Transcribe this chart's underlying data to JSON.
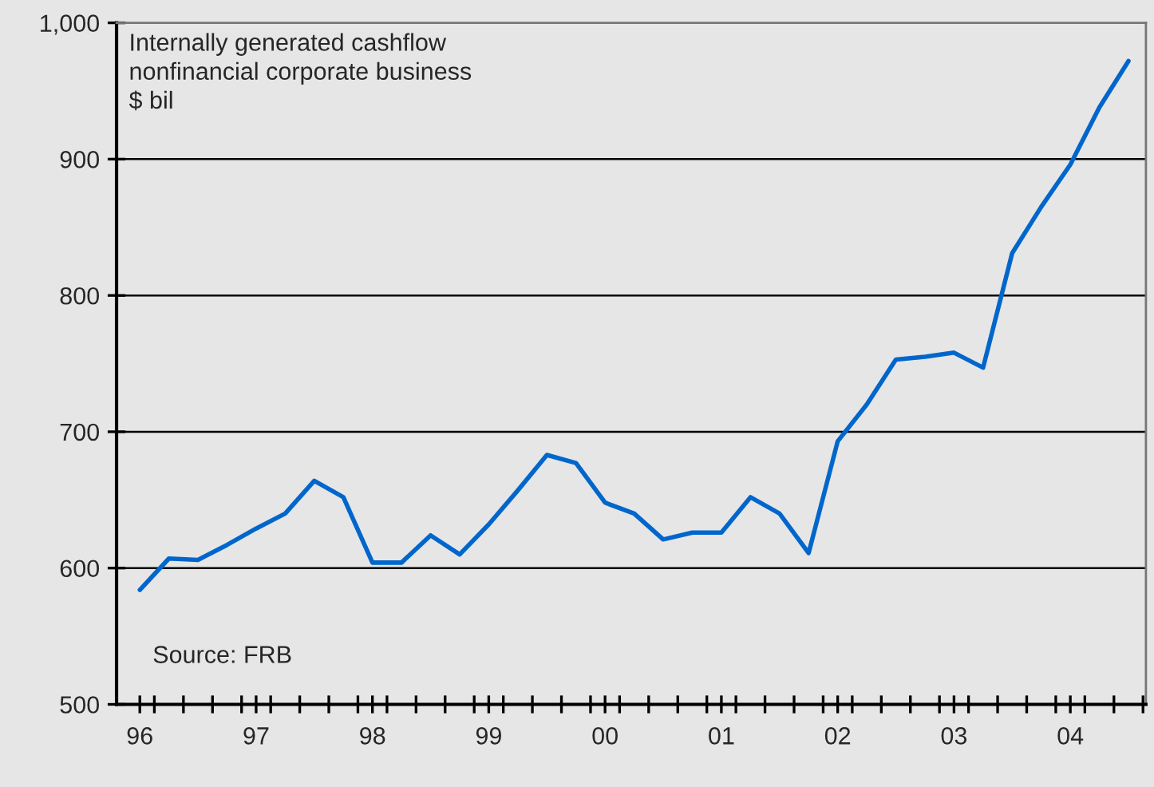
{
  "chart_data": {
    "type": "line",
    "title": "Internally generated cashflow\nnonfinancial corporate business\n$ bil",
    "annotations": [
      "Source: FRB"
    ],
    "x": [
      1996.0,
      1996.25,
      1996.5,
      1996.75,
      1997.0,
      1997.25,
      1997.5,
      1997.75,
      1998.0,
      1998.25,
      1998.5,
      1998.75,
      1999.0,
      1999.25,
      1999.5,
      1999.75,
      2000.0,
      2000.25,
      2000.5,
      2000.75,
      2001.0,
      2001.25,
      2001.5,
      2001.75,
      2002.0,
      2002.25,
      2002.5,
      2002.75,
      2003.0,
      2003.25,
      2003.5,
      2003.75,
      2004.0,
      2004.25,
      2004.5
    ],
    "series": [
      {
        "color": "#0066cc",
        "values": [
          584,
          607,
          606,
          617,
          629,
          640,
          664,
          652,
          604,
          604,
          624,
          610,
          632,
          657,
          683,
          677,
          648,
          640,
          621,
          626,
          626,
          652,
          640,
          611,
          693,
          720,
          753,
          755,
          758,
          747,
          831,
          865,
          896,
          938,
          972
        ]
      }
    ],
    "xlim": [
      1995.8,
      2004.65
    ],
    "xticks": [
      {
        "value": 1996,
        "label": "96"
      },
      {
        "value": 1997,
        "label": "97"
      },
      {
        "value": 1998,
        "label": "98"
      },
      {
        "value": 1999,
        "label": "99"
      },
      {
        "value": 2000,
        "label": "00"
      },
      {
        "value": 2001,
        "label": "01"
      },
      {
        "value": 2002,
        "label": "02"
      },
      {
        "value": 2003,
        "label": "03"
      },
      {
        "value": 2004,
        "label": "04"
      },
      {
        "value": 1996.125,
        "label": null
      },
      {
        "value": 1996.375,
        "label": null
      },
      {
        "value": 1996.625,
        "label": null
      },
      {
        "value": 1996.875,
        "label": null
      },
      {
        "value": 1997.125,
        "label": null
      },
      {
        "value": 1997.375,
        "label": null
      },
      {
        "value": 1997.625,
        "label": null
      },
      {
        "value": 1997.875,
        "label": null
      },
      {
        "value": 1998.125,
        "label": null
      },
      {
        "value": 1998.375,
        "label": null
      },
      {
        "value": 1998.625,
        "label": null
      },
      {
        "value": 1998.875,
        "label": null
      },
      {
        "value": 1999.125,
        "label": null
      },
      {
        "value": 1999.375,
        "label": null
      },
      {
        "value": 1999.625,
        "label": null
      },
      {
        "value": 1999.875,
        "label": null
      },
      {
        "value": 2000.125,
        "label": null
      },
      {
        "value": 2000.375,
        "label": null
      },
      {
        "value": 2000.625,
        "label": null
      },
      {
        "value": 2000.875,
        "label": null
      },
      {
        "value": 2001.125,
        "label": null
      },
      {
        "value": 2001.375,
        "label": null
      },
      {
        "value": 2001.625,
        "label": null
      },
      {
        "value": 2001.875,
        "label": null
      },
      {
        "value": 2002.125,
        "label": null
      },
      {
        "value": 2002.375,
        "label": null
      },
      {
        "value": 2002.625,
        "label": null
      },
      {
        "value": 2002.875,
        "label": null
      },
      {
        "value": 2003.125,
        "label": null
      },
      {
        "value": 2003.375,
        "label": null
      },
      {
        "value": 2003.625,
        "label": null
      },
      {
        "value": 2003.875,
        "label": null
      },
      {
        "value": 2004.125,
        "label": null
      },
      {
        "value": 2004.375,
        "label": null
      },
      {
        "value": 2004.625,
        "label": null
      }
    ],
    "ylim": [
      500,
      1000
    ],
    "yticks": [
      500,
      600,
      700,
      800,
      900,
      {
        "value": 1000,
        "label": "1,000"
      }
    ],
    "grid": "y",
    "marker": "none",
    "line_style": "solid"
  }
}
